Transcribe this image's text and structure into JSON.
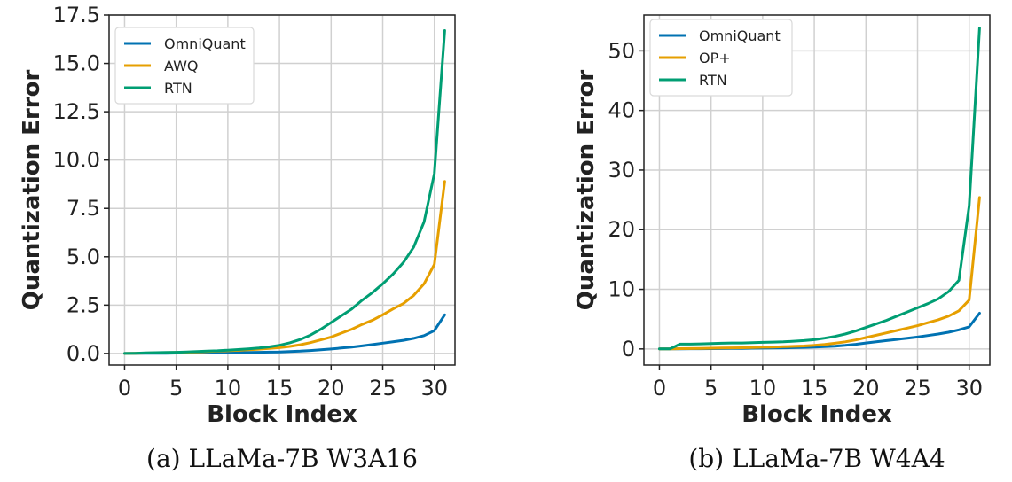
{
  "colors": {
    "OmniQuant": "#0072B2",
    "AWQ": "#E69F00",
    "OP+": "#E69F00",
    "RTN": "#009E73"
  },
  "chart_data": [
    {
      "type": "line",
      "panel": "a",
      "caption": "(a) LLaMa-7B W3A16",
      "xlabel": "Block Index",
      "ylabel": "Quantization Error",
      "xlim": [
        -1.5,
        32
      ],
      "ylim": [
        -0.6,
        17.5
      ],
      "xticks": [
        0,
        5,
        10,
        15,
        20,
        25,
        30
      ],
      "xtick_labels": [
        "0",
        "5",
        "10",
        "15",
        "20",
        "25",
        "30"
      ],
      "yticks": [
        0,
        2.5,
        5,
        7.5,
        10,
        12.5,
        15,
        17.5
      ],
      "ytick_labels": [
        "0.0",
        "2.5",
        "5.0",
        "7.5",
        "10.0",
        "12.5",
        "15.0",
        "17.5"
      ],
      "grid": true,
      "legend": "top-left",
      "x": [
        0,
        1,
        2,
        3,
        4,
        5,
        6,
        7,
        8,
        9,
        10,
        11,
        12,
        13,
        14,
        15,
        16,
        17,
        18,
        19,
        20,
        21,
        22,
        23,
        24,
        25,
        26,
        27,
        28,
        29,
        30,
        31
      ],
      "series": [
        {
          "name": "OmniQuant",
          "values": [
            0,
            0,
            0.01,
            0.01,
            0.01,
            0.02,
            0.02,
            0.02,
            0.03,
            0.03,
            0.04,
            0.04,
            0.05,
            0.06,
            0.07,
            0.08,
            0.1,
            0.12,
            0.15,
            0.19,
            0.23,
            0.28,
            0.33,
            0.39,
            0.46,
            0.53,
            0.6,
            0.68,
            0.78,
            0.92,
            1.18,
            2.0
          ]
        },
        {
          "name": "AWQ",
          "values": [
            0,
            0.01,
            0.02,
            0.03,
            0.04,
            0.05,
            0.06,
            0.08,
            0.1,
            0.12,
            0.14,
            0.16,
            0.19,
            0.22,
            0.26,
            0.3,
            0.36,
            0.45,
            0.56,
            0.7,
            0.85,
            1.05,
            1.25,
            1.5,
            1.72,
            2.0,
            2.3,
            2.58,
            3.0,
            3.6,
            4.6,
            8.9
          ]
        },
        {
          "name": "RTN",
          "values": [
            0,
            0.01,
            0.03,
            0.04,
            0.05,
            0.06,
            0.08,
            0.1,
            0.12,
            0.14,
            0.17,
            0.2,
            0.24,
            0.28,
            0.34,
            0.42,
            0.55,
            0.72,
            0.95,
            1.25,
            1.6,
            1.95,
            2.3,
            2.75,
            3.15,
            3.6,
            4.1,
            4.7,
            5.5,
            6.8,
            9.3,
            16.7
          ]
        }
      ]
    },
    {
      "type": "line",
      "panel": "b",
      "caption": "(b) LLaMa-7B W4A4",
      "xlabel": "Block Index",
      "ylabel": "Quantization Error",
      "xlim": [
        -1.5,
        32
      ],
      "ylim": [
        -2.7,
        56
      ],
      "xticks": [
        0,
        5,
        10,
        15,
        20,
        25,
        30
      ],
      "xtick_labels": [
        "0",
        "5",
        "10",
        "15",
        "20",
        "25",
        "30"
      ],
      "yticks": [
        0,
        10,
        20,
        30,
        40,
        50
      ],
      "ytick_labels": [
        "0",
        "10",
        "20",
        "30",
        "40",
        "50"
      ],
      "grid": true,
      "legend": "top-left",
      "x": [
        0,
        1,
        2,
        3,
        4,
        5,
        6,
        7,
        8,
        9,
        10,
        11,
        12,
        13,
        14,
        15,
        16,
        17,
        18,
        19,
        20,
        21,
        22,
        23,
        24,
        25,
        26,
        27,
        28,
        29,
        30,
        31
      ],
      "series": [
        {
          "name": "OmniQuant",
          "values": [
            0,
            0,
            0.02,
            0.03,
            0.04,
            0.05,
            0.07,
            0.08,
            0.1,
            0.12,
            0.14,
            0.16,
            0.18,
            0.21,
            0.25,
            0.3,
            0.37,
            0.47,
            0.6,
            0.78,
            1.0,
            1.2,
            1.4,
            1.6,
            1.8,
            2.0,
            2.25,
            2.5,
            2.8,
            3.2,
            3.7,
            6.0
          ]
        },
        {
          "name": "OP+",
          "values": [
            0,
            0,
            0.05,
            0.07,
            0.1,
            0.12,
            0.15,
            0.18,
            0.2,
            0.24,
            0.28,
            0.32,
            0.37,
            0.43,
            0.5,
            0.6,
            0.75,
            0.95,
            1.2,
            1.5,
            1.9,
            2.3,
            2.7,
            3.1,
            3.5,
            3.9,
            4.4,
            4.9,
            5.5,
            6.4,
            8.2,
            25.4
          ]
        },
        {
          "name": "RTN",
          "values": [
            0,
            0,
            0.8,
            0.8,
            0.85,
            0.9,
            0.95,
            1.0,
            1.0,
            1.05,
            1.1,
            1.15,
            1.2,
            1.3,
            1.4,
            1.55,
            1.8,
            2.1,
            2.5,
            3.0,
            3.6,
            4.2,
            4.8,
            5.5,
            6.2,
            6.9,
            7.6,
            8.4,
            9.6,
            11.5,
            24.0,
            53.8
          ]
        }
      ]
    }
  ]
}
